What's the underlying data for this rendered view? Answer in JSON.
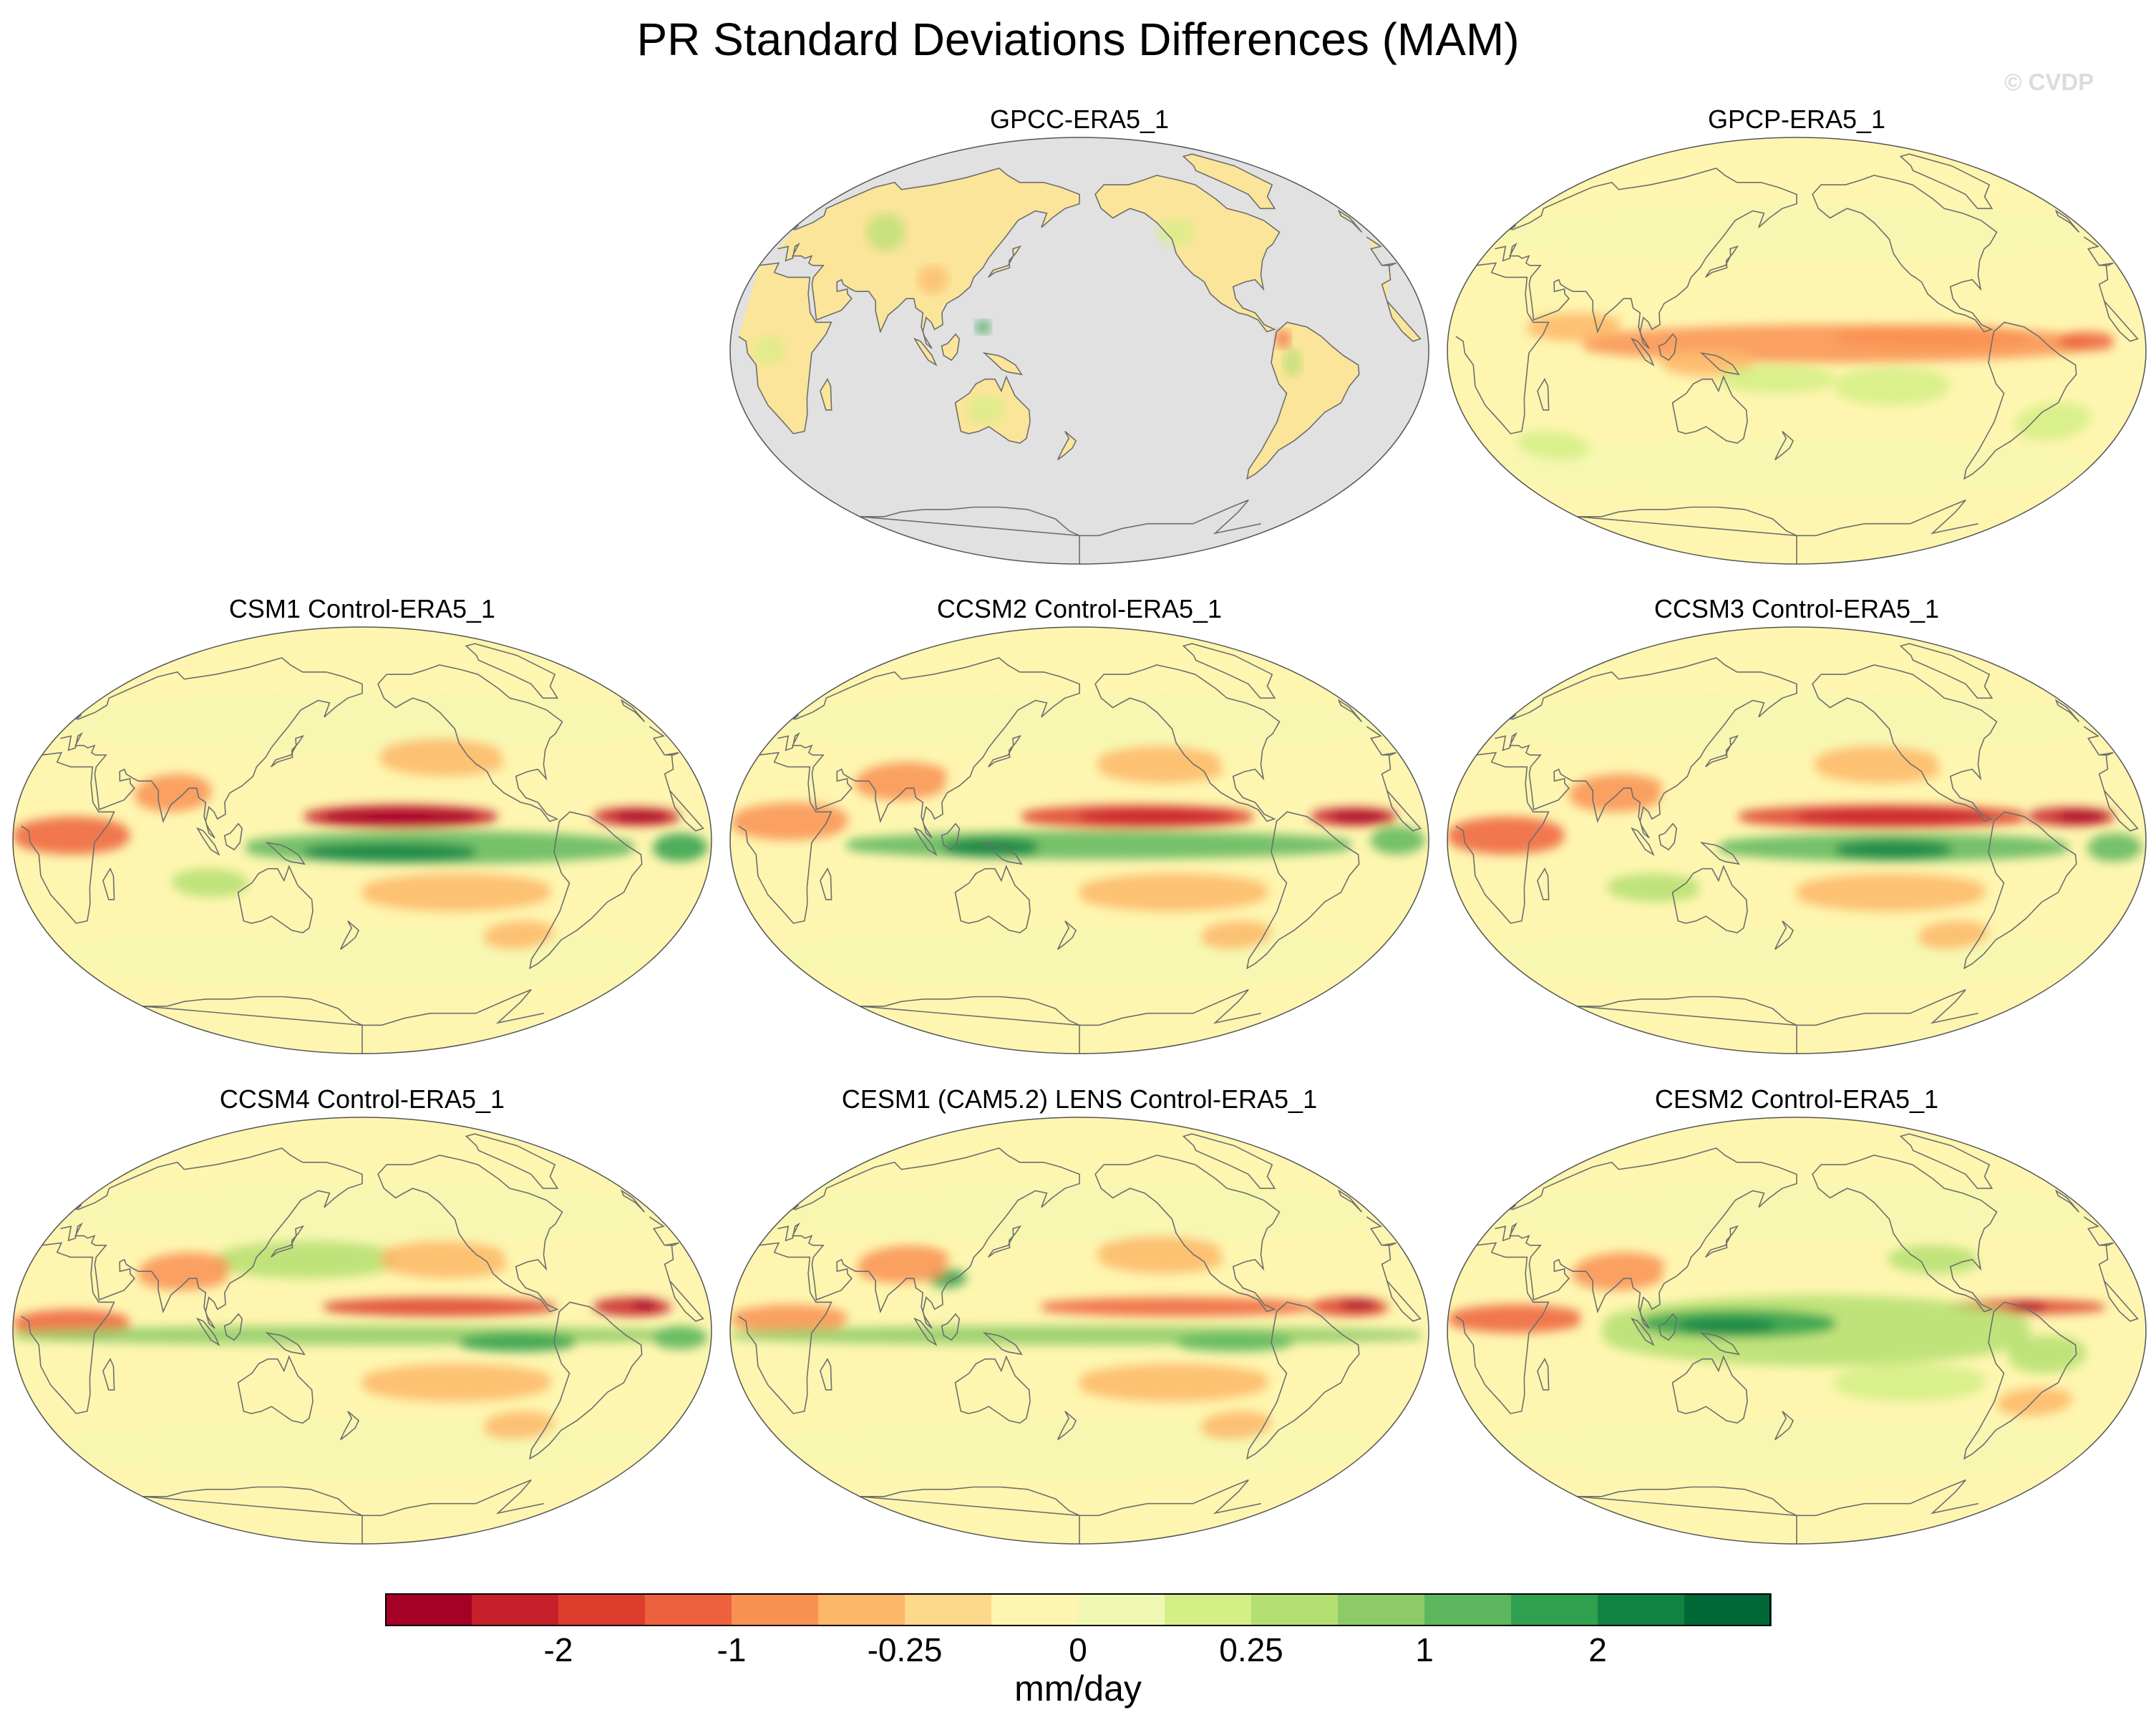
{
  "title": "PR Standard Deviations Differences (MAM)",
  "watermark": "© CVDP",
  "panels": [
    {
      "name": "GPCC-ERA5_1",
      "land_only": true
    },
    {
      "name": "GPCP-ERA5_1",
      "land_only": false
    },
    {
      "name": "CSM1 Control-ERA5_1",
      "land_only": false
    },
    {
      "name": "CCSM2 Control-ERA5_1",
      "land_only": false
    },
    {
      "name": "CCSM3 Control-ERA5_1",
      "land_only": false
    },
    {
      "name": "CCSM4 Control-ERA5_1",
      "land_only": false
    },
    {
      "name": "CESM1 (CAM5.2) LENS Control-ERA5_1",
      "land_only": false
    },
    {
      "name": "CESM2 Control-ERA5_1",
      "land_only": false
    }
  ],
  "colorbar": {
    "colors": [
      "#a50026",
      "#c8202a",
      "#dd3d2d",
      "#ee613d",
      "#f99153",
      "#fdb768",
      "#fdd98b",
      "#fef6b0",
      "#f1f8b3",
      "#d4ef85",
      "#b4df72",
      "#8dcb66",
      "#5db75e",
      "#30a04e",
      "#118444",
      "#006837"
    ],
    "labels": [
      "-2",
      "-1",
      "-0.25",
      "0",
      "0.25",
      "1",
      "2"
    ],
    "units": "mm/day"
  },
  "styles": {
    "land_mask_color": "#e1e1e1",
    "base_color": "#fef6b0",
    "coast_color": "#6e6e6e"
  }
}
